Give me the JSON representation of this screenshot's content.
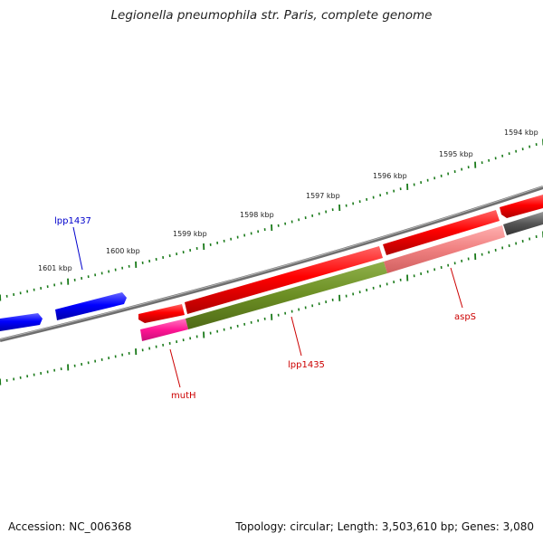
{
  "title": "Legionella pneumophila str. Paris, complete genome",
  "footer": {
    "accession": "Accession: NC_006368",
    "summary": "Topology: circular; Length: 3,503,610 bp; Genes: 3,080"
  },
  "scale_labels": [
    "1594 kbp",
    "1595 kbp",
    "1596 kbp",
    "1597 kbp",
    "1598 kbp",
    "1599 kbp",
    "1600 kbp",
    "1601 kbp"
  ],
  "genes": [
    {
      "label": "lpp1437",
      "color": "#0000cc"
    },
    {
      "label": "mutH",
      "color": "#cc0000"
    },
    {
      "label": "lpp1435",
      "color": "#cc0000"
    },
    {
      "label": "aspS",
      "color": "#cc0000"
    }
  ],
  "colors": {
    "forward_strand": "#ff0000",
    "reverse_strand": "#0000ff",
    "backbone": "#777777",
    "tick": "#1a7a1a",
    "cds_mutH": "#ff1493",
    "cds_lpp1435": "#6b8e23",
    "cds_aspS": "#f08080",
    "cds_other": "#555555"
  }
}
